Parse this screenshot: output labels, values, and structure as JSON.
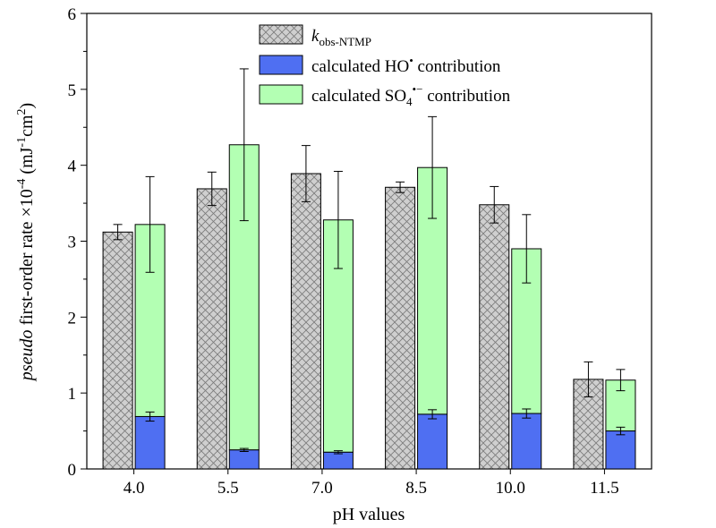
{
  "chart_data": {
    "type": "bar",
    "categories": [
      "4.0",
      "5.5",
      "7.0",
      "8.5",
      "10.0",
      "11.5"
    ],
    "xlabel": "pH values",
    "ylabel": {
      "italic": "pseudo",
      "text": " first-order rate ×10",
      "exp": "-4",
      "unit_open": " (mJ",
      "unit_exp1": "-1",
      "unit_mid": "cm",
      "unit_exp2": "2",
      "unit_close": ")"
    },
    "ylim": [
      0,
      6
    ],
    "yticks": [
      0,
      1,
      2,
      3,
      4,
      5,
      6
    ],
    "series": [
      {
        "name": "kobs-NTMP",
        "values": [
          3.12,
          3.69,
          3.89,
          3.71,
          3.48,
          1.18
        ],
        "errors": [
          0.1,
          0.22,
          0.37,
          0.07,
          0.24,
          0.23
        ]
      },
      {
        "name": "calculated HO• contribution",
        "values": [
          0.69,
          0.25,
          0.22,
          0.72,
          0.73,
          0.5
        ],
        "errors": [
          0.06,
          0.02,
          0.02,
          0.06,
          0.06,
          0.05
        ]
      },
      {
        "name": "calculated SO4•− contribution",
        "values": [
          2.53,
          4.02,
          3.06,
          3.25,
          2.17,
          0.67
        ],
        "totals": [
          3.22,
          4.27,
          3.28,
          3.97,
          2.9,
          1.17
        ],
        "errors": [
          0.63,
          1.0,
          0.64,
          0.67,
          0.45,
          0.14
        ]
      }
    ],
    "legend": {
      "position": "top-center",
      "items": [
        {
          "main": "k",
          "sub": "obs-NTMP"
        },
        {
          "main": "calculated HO",
          "sup": "•",
          "rest": " contribution"
        },
        {
          "main": "calculated SO",
          "sub": "4",
          "sup": "•−",
          "rest": " contribution"
        }
      ]
    },
    "colors": {
      "kobs": "#cfcfcf",
      "hatch": "#7a7a7a",
      "ho": "#4f6ff2",
      "so4": "#b3ffb3",
      "edge": "#000000"
    },
    "grid": false
  }
}
